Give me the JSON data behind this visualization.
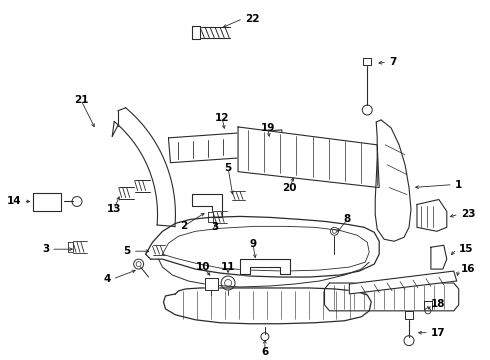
{
  "bg_color": "#ffffff",
  "line_color": "#2a2a2a",
  "text_color": "#000000",
  "fig_width": 4.9,
  "fig_height": 3.6,
  "dpi": 100
}
